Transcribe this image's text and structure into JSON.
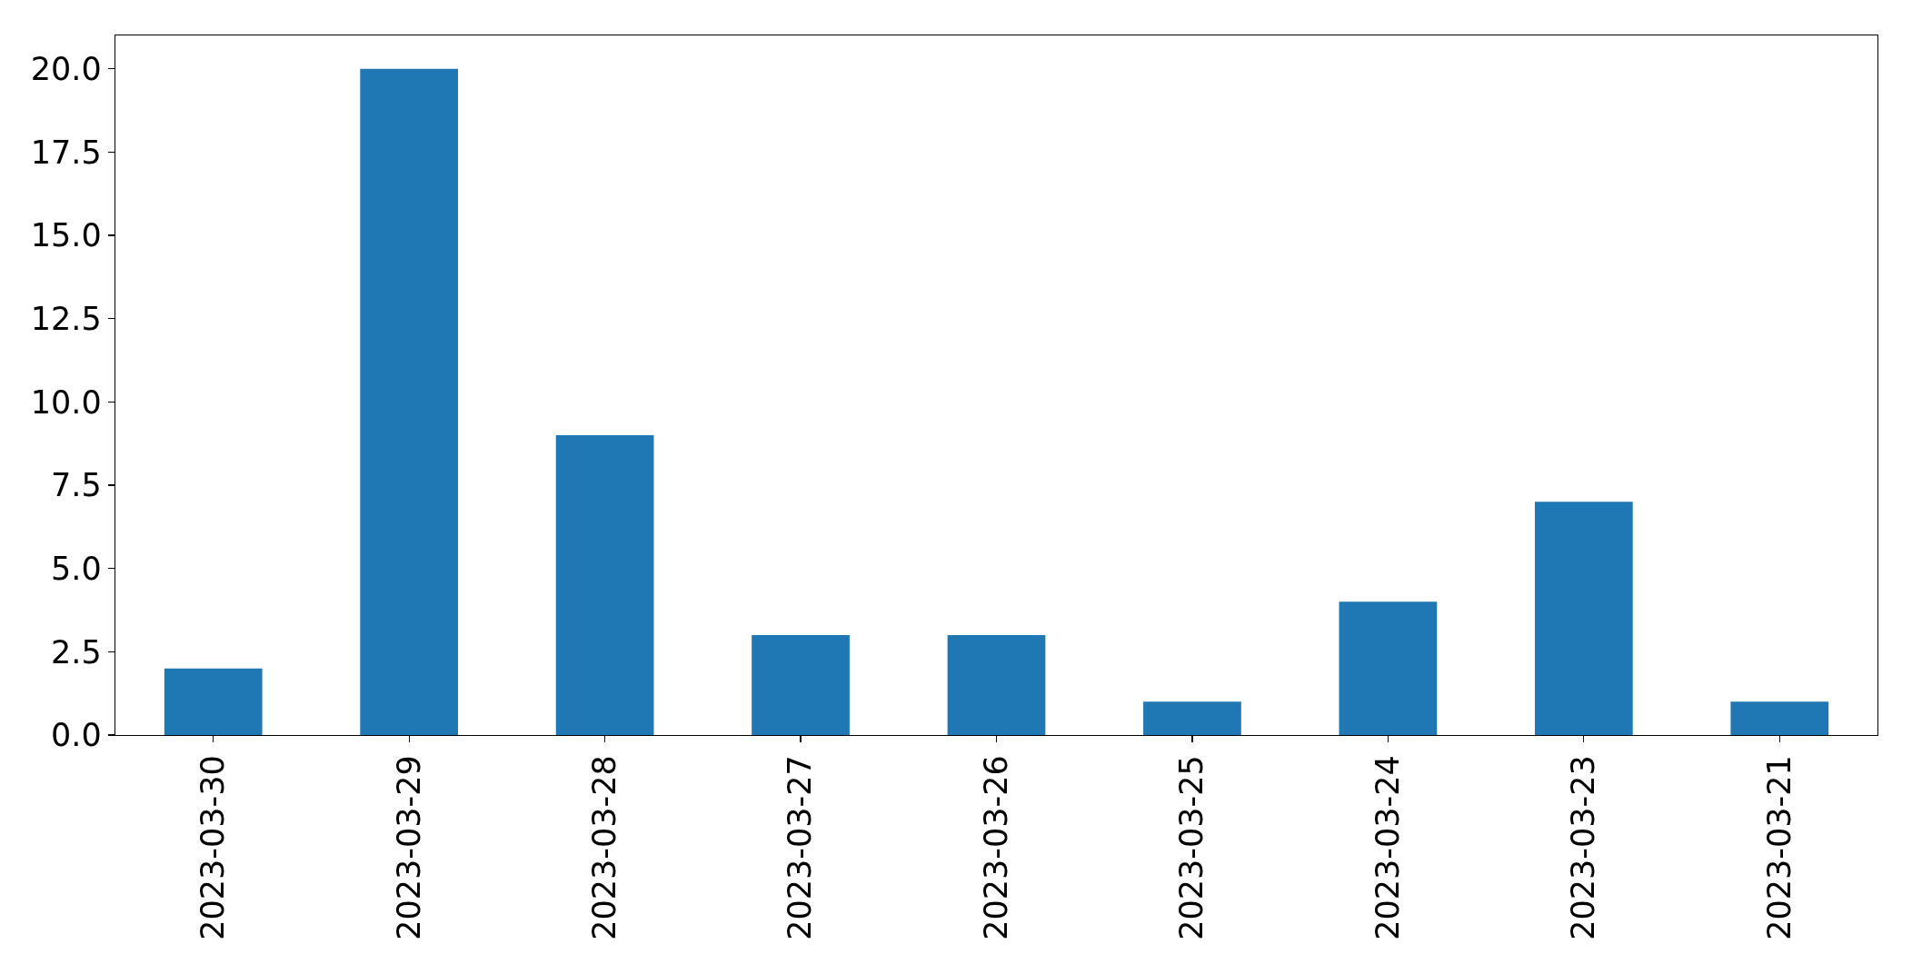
{
  "chart_data": {
    "type": "bar",
    "categories": [
      "2023-03-30",
      "2023-03-29",
      "2023-03-28",
      "2023-03-27",
      "2023-03-26",
      "2023-03-25",
      "2023-03-24",
      "2023-03-23",
      "2023-03-21"
    ],
    "values": [
      2,
      20,
      9,
      3,
      3,
      1,
      4,
      7,
      1
    ],
    "color": "#1f77b4",
    "ylim": [
      0,
      21
    ],
    "yticks": [
      {
        "value": 0,
        "label": "0.0"
      },
      {
        "value": 2.5,
        "label": "2.5"
      },
      {
        "value": 5,
        "label": "5.0"
      },
      {
        "value": 7.5,
        "label": "7.5"
      },
      {
        "value": 10,
        "label": "10.0"
      },
      {
        "value": 12.5,
        "label": "12.5"
      },
      {
        "value": 15,
        "label": "15.0"
      },
      {
        "value": 17.5,
        "label": "17.5"
      },
      {
        "value": 20,
        "label": "20.0"
      }
    ],
    "grid": false
  }
}
